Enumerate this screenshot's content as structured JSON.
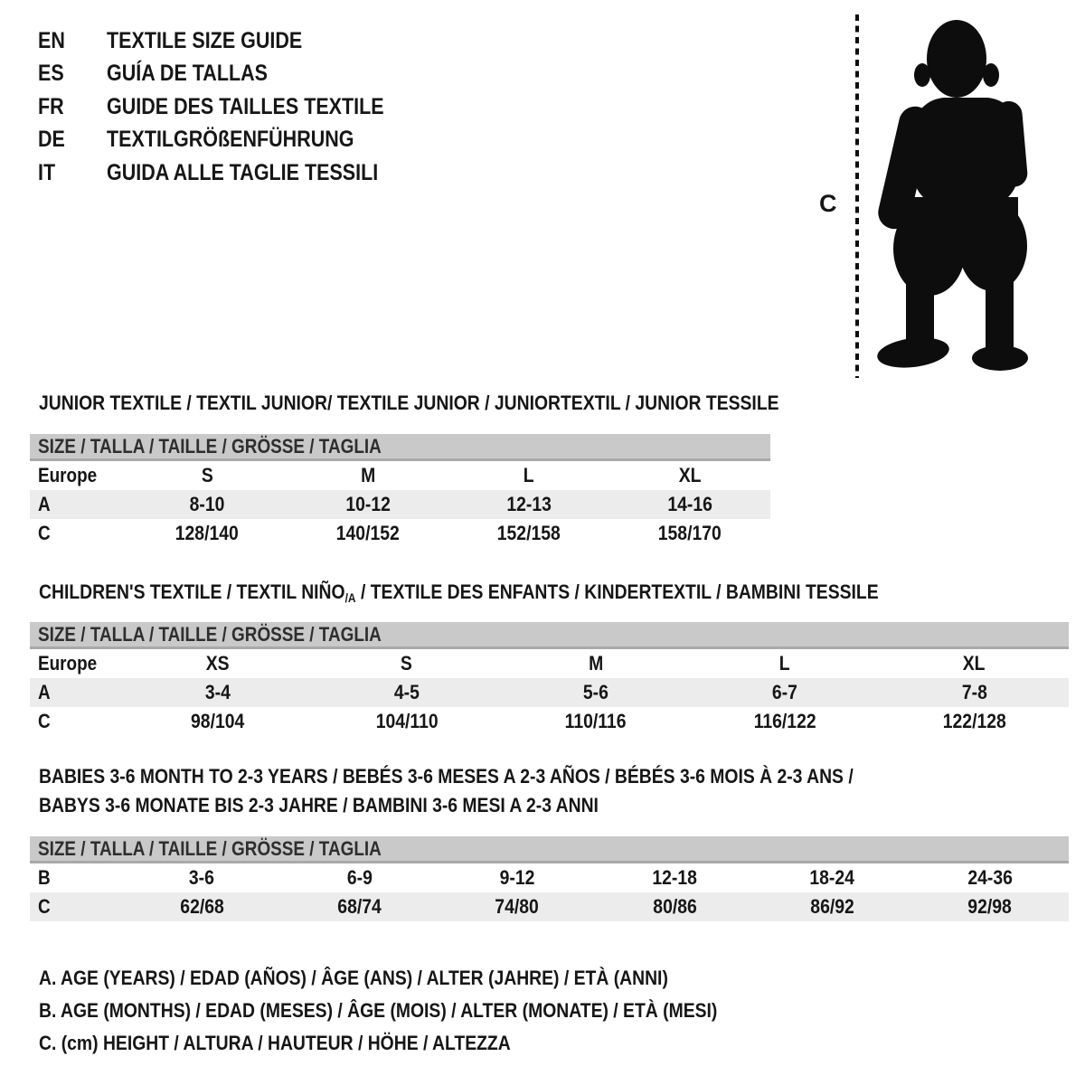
{
  "header": {
    "languages": [
      {
        "code": "EN",
        "title": "TEXTILE SIZE GUIDE"
      },
      {
        "code": "ES",
        "title": "GUÍA DE TALLAS"
      },
      {
        "code": "FR",
        "title": "GUIDE DES TAILLES TEXTILE"
      },
      {
        "code": "DE",
        "title": "TEXTILGRÖßENFÜHRUNG"
      },
      {
        "code": "IT",
        "title": "GUIDA ALLE TAGLIE TESSILI"
      }
    ]
  },
  "figure": {
    "measure_label": "C",
    "icon": "toddler-silhouette"
  },
  "sections": [
    {
      "id": "junior",
      "title_lines": [
        "JUNIOR TEXTILE / TEXTIL JUNIOR/ TEXTILE JUNIOR / JUNIORTEXTIL / JUNIOR TESSILE"
      ],
      "size_header": "SIZE / TALLA / TAILLE / GRÖSSE / TAGLIA",
      "rows": [
        {
          "label": "Europe",
          "values": [
            "S",
            "M",
            "L",
            "XL"
          ],
          "shaded": false
        },
        {
          "label": "A",
          "values": [
            "8-10",
            "10-12",
            "12-13",
            "14-16"
          ],
          "shaded": true
        },
        {
          "label": "C",
          "values": [
            "128/140",
            "140/152",
            "152/158",
            "158/170"
          ],
          "shaded": false
        }
      ]
    },
    {
      "id": "children",
      "title_lines": [
        {
          "pre": "CHILDREN'S TEXTILE / TEXTIL NIÑO",
          "sub": "/A",
          "post": " / TEXTILE DES ENFANTS / KINDERTEXTIL / BAMBINI TESSILE"
        }
      ],
      "size_header": "SIZE / TALLA / TAILLE / GRÖSSE / TAGLIA",
      "rows": [
        {
          "label": "Europe",
          "values": [
            "XS",
            "S",
            "M",
            "L",
            "XL"
          ],
          "shaded": false
        },
        {
          "label": "A",
          "values": [
            "3-4",
            "4-5",
            "5-6",
            "6-7",
            "7-8"
          ],
          "shaded": true
        },
        {
          "label": "C",
          "values": [
            "98/104",
            "104/110",
            "110/116",
            "116/122",
            "122/128"
          ],
          "shaded": false
        }
      ]
    },
    {
      "id": "babies",
      "title_lines": [
        "BABIES 3-6 MONTH TO 2-3 YEARS / BEBÉS 3-6 MESES A 2-3 AÑOS / BÉBÉS 3-6 MOIS À 2-3 ANS /",
        "BABYS 3-6 MONATE BIS 2-3 JAHRE / BAMBINI 3-6 MESI A 2-3 ANNI"
      ],
      "size_header": "SIZE / TALLA / TAILLE / GRÖSSE / TAGLIA",
      "rows": [
        {
          "label": "B",
          "values": [
            "3-6",
            "6-9",
            "9-12",
            "12-18",
            "18-24",
            "24-36"
          ],
          "shaded": false
        },
        {
          "label": "C",
          "values": [
            "62/68",
            "68/74",
            "74/80",
            "80/86",
            "86/92",
            "92/98"
          ],
          "shaded": true
        }
      ]
    }
  ],
  "footnotes": [
    "A. AGE (YEARS) / EDAD (AÑOS) / ÂGE (ANS) / ALTER (JAHRE) / ETÀ (ANNI)",
    "B. AGE (MONTHS) / EDAD (MESES) / ÂGE (MOIS) / ALTER (MONATE) / ETÀ (MESI)",
    "C. (cm) HEIGHT / ALTURA / HAUTEUR / HÖHE / ALTEZZA"
  ],
  "colors": {
    "text": "#161616",
    "bar_bg": "#c9c9c9",
    "bar_edge": "#a9a9a9",
    "row_shade": "#ececec",
    "silhouette": "#0d0d0d"
  }
}
